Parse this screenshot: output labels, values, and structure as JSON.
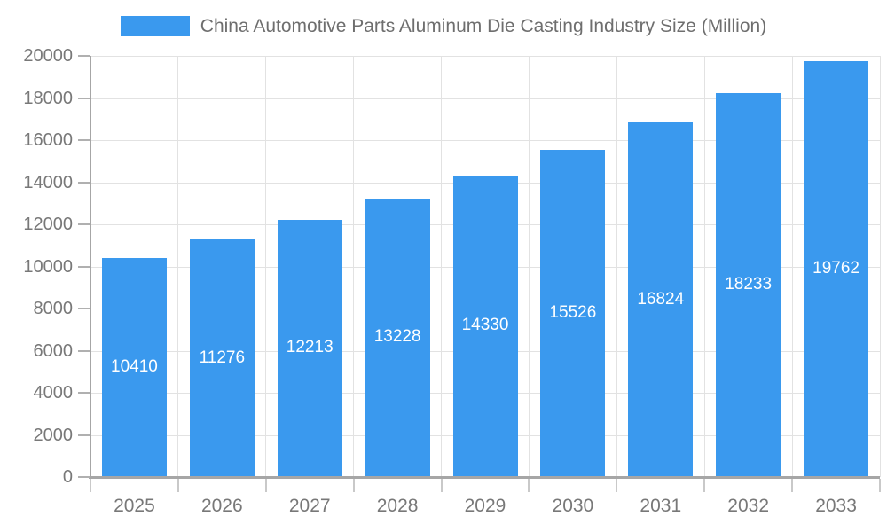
{
  "legend": {
    "series_label": "China Automotive Parts Aluminum Die Casting Industry Size (Million)"
  },
  "chart_data": {
    "type": "bar",
    "title": "China Automotive Parts Aluminum Die Casting Industry Size (Million)",
    "categories": [
      "2025",
      "2026",
      "2027",
      "2028",
      "2029",
      "2030",
      "2031",
      "2032",
      "2033"
    ],
    "series": [
      {
        "name": "China Automotive Parts Aluminum Die Casting Industry Size (Million)",
        "values": [
          10410,
          11276,
          12213,
          13228,
          14330,
          15526,
          16824,
          18233,
          19762
        ]
      }
    ],
    "value_labels": [
      "10410",
      "11276",
      "12213",
      "13228",
      "14330",
      "15526",
      "16824",
      "18233",
      "19762"
    ],
    "xlabel": "",
    "ylabel": "",
    "ylim": [
      0,
      20000
    ],
    "ytick_step": 2000,
    "ytick_labels": [
      "0",
      "2000",
      "4000",
      "6000",
      "8000",
      "10000",
      "12000",
      "14000",
      "16000",
      "18000",
      "20000"
    ],
    "grid": true,
    "legend_position": "top-center",
    "bar_color": "#3A99EE",
    "value_label_color": "#ffffff",
    "axis_label_color": "#787878",
    "title_color": "#6e6e6e"
  }
}
